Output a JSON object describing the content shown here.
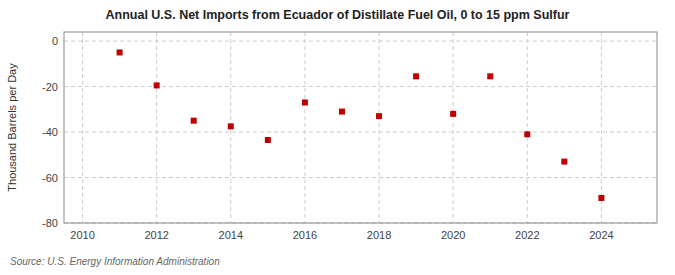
{
  "chart_data": {
    "type": "scatter",
    "title": "Annual U.S. Net Imports from Ecuador of Distillate Fuel Oil, 0 to 15 ppm Sulfur",
    "y_label": "Thousand Barrels per Day",
    "source": "Source: U.S. Energy Information Administration",
    "x": [
      2011,
      2012,
      2013,
      2014,
      2015,
      2016,
      2017,
      2018,
      2019,
      2020,
      2021,
      2022,
      2023,
      2024
    ],
    "values": [
      -5.0,
      -19.5,
      -35.0,
      -37.5,
      -43.5,
      -27.0,
      -31.0,
      -33.0,
      -15.5,
      -32.0,
      -15.5,
      -41.0,
      -53.0,
      -69.0
    ],
    "color": "#c00000",
    "marker": "square",
    "xlim": [
      2009.5,
      2025.5
    ],
    "xticks": [
      2010,
      2012,
      2014,
      2016,
      2018,
      2020,
      2022,
      2024
    ],
    "ylim": [
      -80,
      4
    ],
    "yticks": [
      0,
      -20,
      -40,
      -60,
      -80
    ],
    "grid": true
  }
}
